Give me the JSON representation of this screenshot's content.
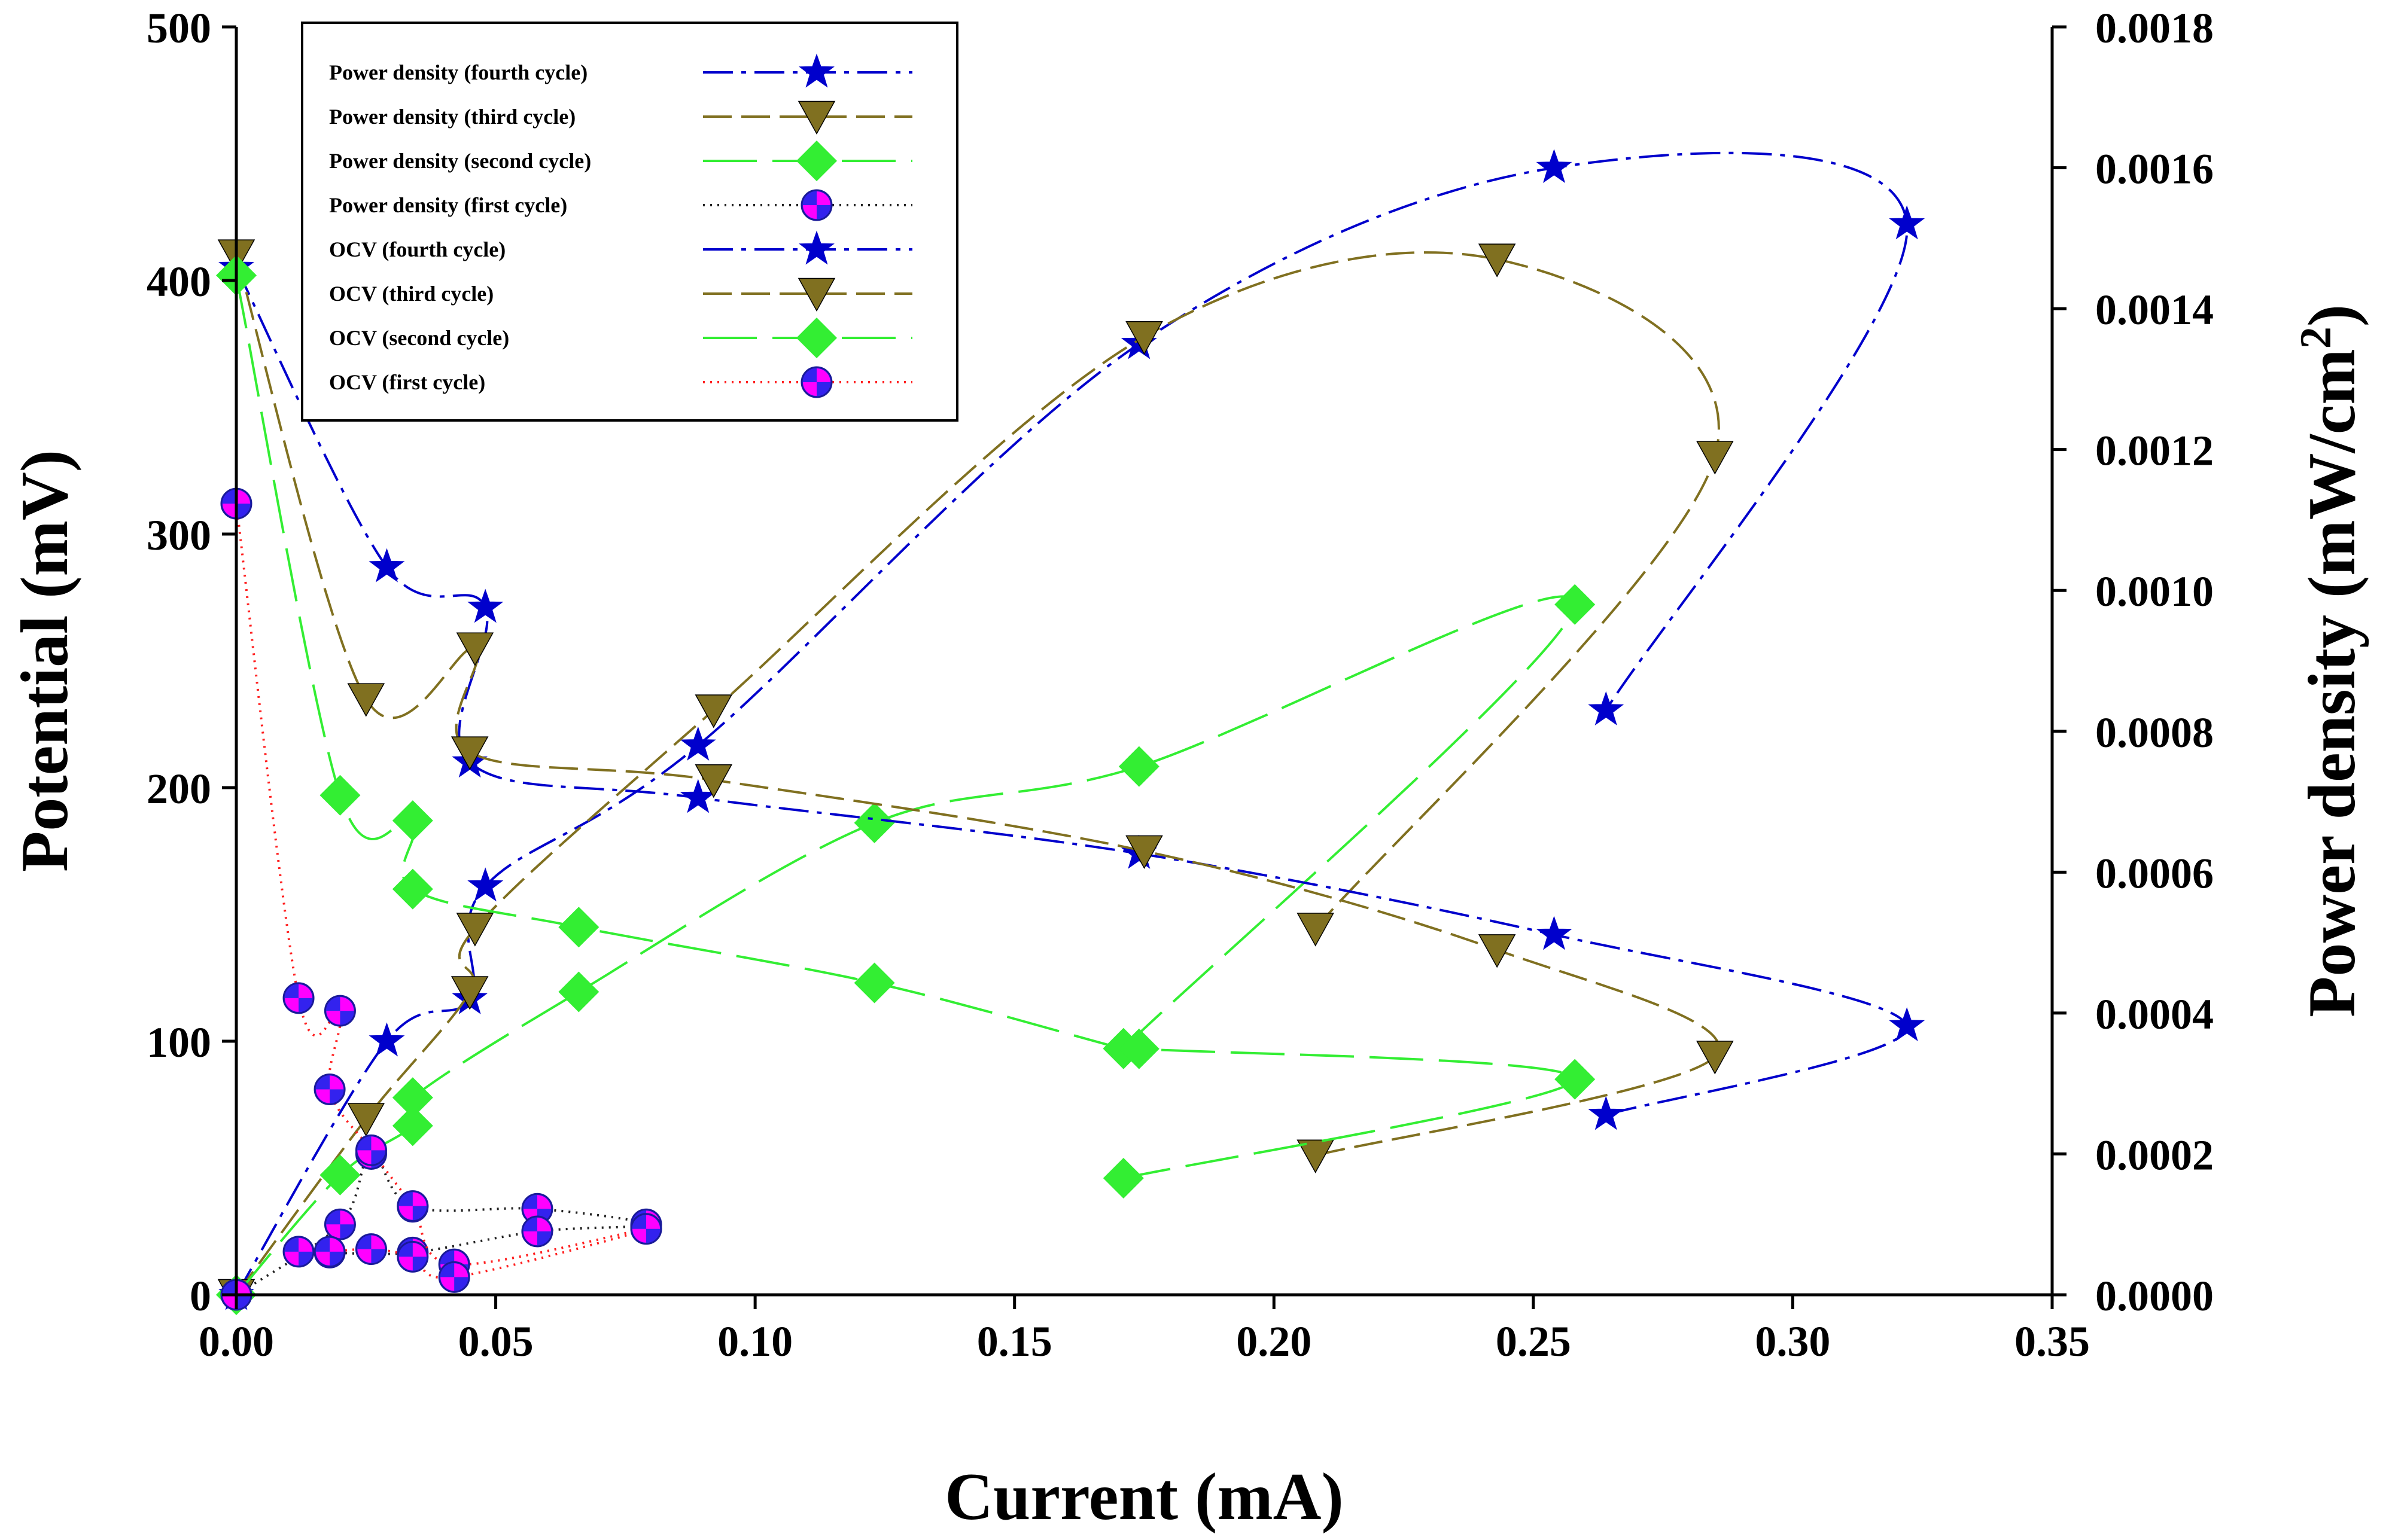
{
  "chart_data": {
    "type": "scatter",
    "title": "",
    "xlabel": "Current (mA)",
    "ylabel": "Potential (mV)",
    "y2label": "Power density (mW/cm",
    "y2label_sup": "2",
    "y2label_end": ")",
    "xlim": [
      0,
      0.35
    ],
    "ylim": [
      0,
      500
    ],
    "y2lim": [
      0,
      0.0018
    ],
    "xticks": [
      "0.00",
      "0.05",
      "0.10",
      "0.15",
      "0.20",
      "0.25",
      "0.30",
      "0.35"
    ],
    "xtick_values": [
      0,
      0.05,
      0.1,
      0.15,
      0.2,
      0.25,
      0.3,
      0.35
    ],
    "yticks": [
      "0",
      "100",
      "200",
      "300",
      "400",
      "500"
    ],
    "ytick_values": [
      0,
      100,
      200,
      300,
      400,
      500
    ],
    "y2ticks": [
      "0.0000",
      "0.0002",
      "0.0004",
      "0.0006",
      "0.0008",
      "0.0010",
      "0.0012",
      "0.0014",
      "0.0016",
      "0.0018"
    ],
    "y2tick_values": [
      0,
      0.0002,
      0.0004,
      0.0006,
      0.0008,
      0.001,
      0.0012,
      0.0014,
      0.0016,
      0.0018
    ],
    "legend_position": "top-left",
    "series": [
      {
        "name": "Power density (fourth cycle)",
        "axis": "right",
        "color": "#0000cc",
        "dash": "50,14,8,14",
        "marker": "star",
        "x": [
          0,
          0.029,
          0.045,
          0.048,
          0.089,
          0.174,
          0.254,
          0.322,
          0.264
        ],
        "y": [
          0,
          0.00036,
          0.00042,
          0.00058,
          0.00078,
          0.00135,
          0.0016,
          0.00152,
          0.00083
        ]
      },
      {
        "name": "Power density (third cycle)",
        "axis": "right",
        "color": "#807020",
        "dash": "48,16",
        "marker": "triangle-down",
        "x": [
          0,
          0.025,
          0.045,
          0.046,
          0.092,
          0.175,
          0.243,
          0.285,
          0.208
        ],
        "y": [
          0,
          0.00025,
          0.00043,
          0.00052,
          0.00083,
          0.00136,
          0.00147,
          0.00119,
          0.00052
        ]
      },
      {
        "name": "Power density (second cycle)",
        "axis": "right",
        "color": "#33ee33",
        "dash": "90,26",
        "marker": "diamond",
        "x": [
          0,
          0.02,
          0.034,
          0.034,
          0.066,
          0.123,
          0.174,
          0.258,
          0.171
        ],
        "y": [
          0,
          0.00017,
          0.00024,
          0.00028,
          0.00043,
          0.00067,
          0.00075,
          0.00098,
          0.00035
        ]
      },
      {
        "name": "Power density (first cycle)",
        "axis": "right",
        "color": "#222222",
        "dash": "3,9",
        "marker": "circle",
        "x": [
          0,
          0.02,
          0.026,
          0.034,
          0.058,
          0.079,
          0.058,
          0.034,
          0.018
        ],
        "y": [
          0,
          0.0001,
          0.0002,
          0.000125,
          0.000122,
          0.0001,
          9e-05,
          6e-05,
          6e-05
        ]
      },
      {
        "name": "OCV (fourth cycle)",
        "axis": "left",
        "color": "#0000cc",
        "dash": "50,14,8,14",
        "marker": "star",
        "x": [
          0,
          0.029,
          0.048,
          0.045,
          0.089,
          0.174,
          0.254,
          0.322,
          0.264
        ],
        "y": [
          405,
          287,
          271,
          210,
          196,
          174,
          142,
          106,
          71
        ]
      },
      {
        "name": "OCV (third cycle)",
        "axis": "left",
        "color": "#807020",
        "dash": "48,16",
        "marker": "triangle-down",
        "x": [
          0,
          0.025,
          0.046,
          0.045,
          0.092,
          0.175,
          0.243,
          0.285,
          0.208
        ],
        "y": [
          410,
          235,
          255,
          214,
          203,
          175,
          136,
          94,
          55
        ]
      },
      {
        "name": "OCV (second cycle)",
        "axis": "left",
        "color": "#33ee33",
        "dash": "90,26",
        "marker": "diamond",
        "x": [
          0,
          0.02,
          0.034,
          0.034,
          0.066,
          0.123,
          0.171,
          0.174,
          0.258,
          0.171
        ],
        "y": [
          402,
          197,
          187,
          160,
          145,
          123,
          97,
          97,
          85,
          46
        ]
      },
      {
        "name": "OCV (first cycle)",
        "axis": "left",
        "color": "#ff2020",
        "dash": "3,9",
        "marker": "circle",
        "x": [
          0,
          0.012,
          0.02,
          0.018,
          0.026,
          0.034,
          0.042,
          0.079,
          0.042,
          0.034,
          0.026,
          0.018,
          0.012
        ],
        "y": [
          312,
          117,
          112,
          81,
          57,
          35,
          12,
          26,
          7,
          15,
          18,
          17,
          17
        ]
      }
    ]
  }
}
